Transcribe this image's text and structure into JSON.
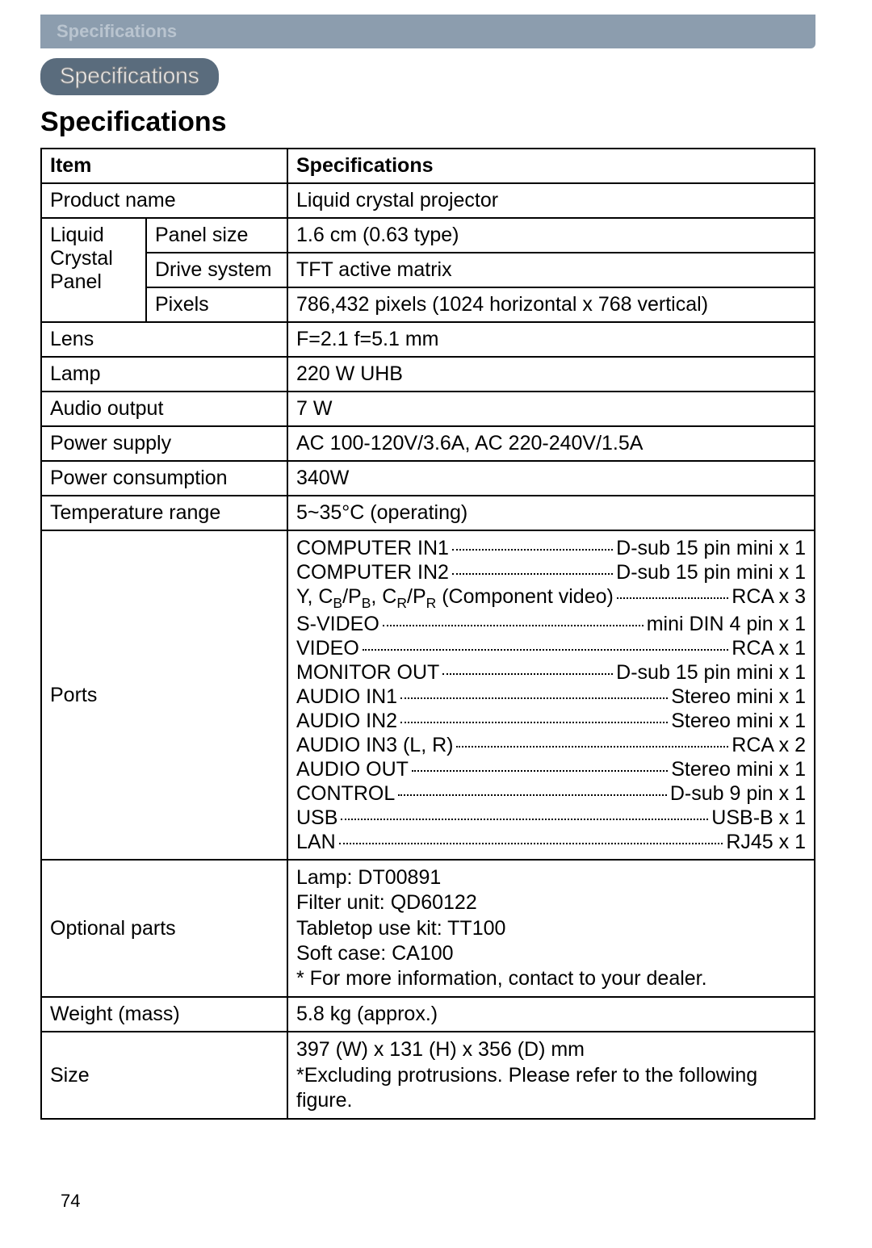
{
  "header_bar": "Specifications",
  "pill": "Specifications",
  "main_heading": "Specifications",
  "page_number": "74",
  "table": {
    "header": {
      "item": "Item",
      "spec": "Specifications"
    },
    "product_name": {
      "label": "Product name",
      "value": "Liquid crystal projector"
    },
    "lcp": {
      "group_label": "Liquid Crystal Panel",
      "panel_size": {
        "label": "Panel size",
        "value": "1.6 cm (0.63 type)"
      },
      "drive_system": {
        "label": "Drive system",
        "value": "TFT active matrix"
      },
      "pixels": {
        "label": "Pixels",
        "value": "786,432 pixels (1024 horizontal x 768 vertical)"
      }
    },
    "lens": {
      "label": "Lens",
      "value": "F=2.1  f=5.1 mm"
    },
    "lamp": {
      "label": "Lamp",
      "value": "220 W UHB"
    },
    "audio_output": {
      "label": "Audio output",
      "value": "7 W"
    },
    "power_supply": {
      "label": "Power supply",
      "value": "AC 100-120V/3.6A, AC 220-240V/1.5A"
    },
    "power_consumption": {
      "label": "Power consumption",
      "value": "340W"
    },
    "temperature_range": {
      "label": "Temperature range",
      "value": "5~35°C (operating)"
    },
    "ports": {
      "label": "Ports",
      "lines": [
        {
          "l": "COMPUTER IN1",
          "r": "D-sub 15 pin mini x 1"
        },
        {
          "l": "COMPUTER IN2",
          "r": "D-sub 15 pin mini x 1"
        },
        {
          "l": "Y, C_B/P_B, C_R/P_R (Component video)",
          "r": "RCA x 3"
        },
        {
          "l": "S-VIDEO",
          "r": "mini DIN 4 pin x 1"
        },
        {
          "l": "VIDEO",
          "r": "RCA x 1"
        },
        {
          "l": "MONITOR OUT",
          "r": "D-sub 15 pin mini x 1"
        },
        {
          "l": "AUDIO IN1",
          "r": "Stereo mini x 1"
        },
        {
          "l": "AUDIO IN2",
          "r": "Stereo mini x 1"
        },
        {
          "l": "AUDIO IN3 (L, R)",
          "r": "RCA x 2"
        },
        {
          "l": "AUDIO OUT",
          "r": "Stereo mini x 1"
        },
        {
          "l": "CONTROL",
          "r": "D-sub 9 pin x 1"
        },
        {
          "l": "USB",
          "r": "USB-B x 1"
        },
        {
          "l": "LAN",
          "r": "RJ45 x 1"
        }
      ]
    },
    "optional_parts": {
      "label": "Optional parts",
      "lines": [
        "Lamp: DT00891",
        "Filter unit: QD60122",
        "Tabletop use kit: TT100",
        "Soft case: CA100",
        "* For more information, contact to your dealer."
      ]
    },
    "weight": {
      "label": "Weight (mass)",
      "value": "5.8 kg (approx.)"
    },
    "size": {
      "label": "Size",
      "lines": [
        "397 (W) x 131 (H) x 356 (D) mm",
        "*Excluding protrusions. Please refer to the following figure."
      ]
    }
  }
}
